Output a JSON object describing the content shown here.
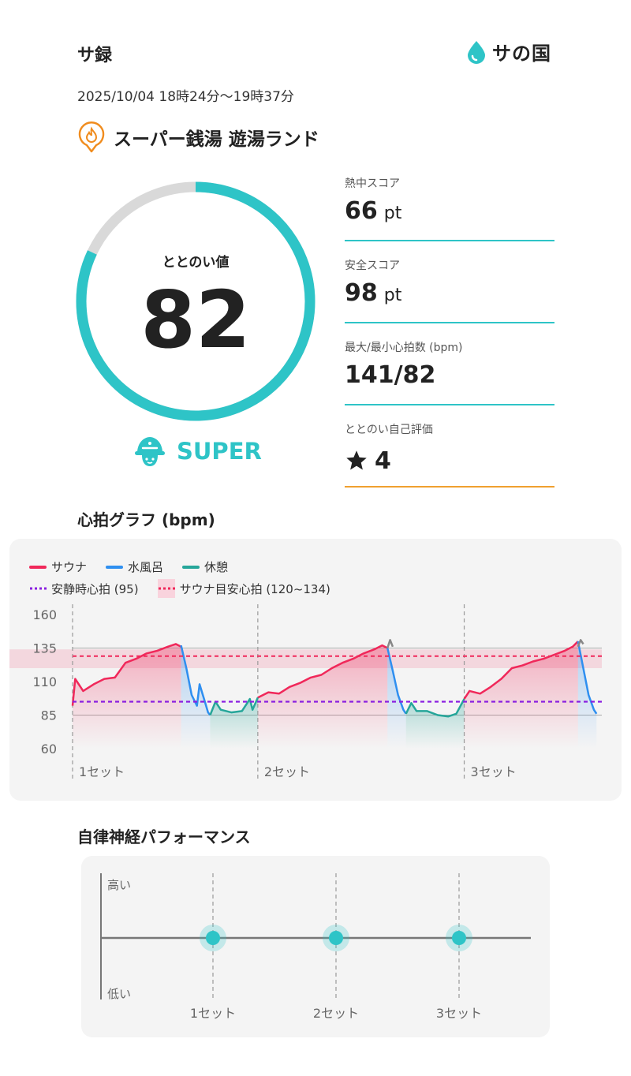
{
  "header": {
    "title": "サ録",
    "logo_text": "サの国",
    "datetime": "2025/10/04 18時24分〜19時37分",
    "facility": "スーパー銭湯 遊湯ランド"
  },
  "gauge": {
    "label": "ととのい値",
    "value": "82",
    "max": 100,
    "rank": "SUPER",
    "color": "#2ec4c7",
    "track_color": "#d9d9d9"
  },
  "stats": [
    {
      "label": "熱中スコア",
      "value": "66",
      "unit": "pt"
    },
    {
      "label": "安全スコア",
      "value": "98",
      "unit": "pt"
    },
    {
      "label": "最大/最小心拍数 (bpm)",
      "value": "141/82",
      "unit": ""
    },
    {
      "label": "ととのい自己評価",
      "value": "4",
      "unit": "",
      "icon": "star-icon"
    }
  ],
  "heart_chart": {
    "section_title": "心拍グラフ (bpm)",
    "legend": {
      "sauna": "サウナ",
      "cold": "水風呂",
      "rest": "休憩",
      "resting_hr": "安静時心拍 (95)",
      "target": "サウナ目安心拍 (120~134)"
    },
    "colors": {
      "sauna": "#f0285a",
      "cold": "#2f8ff0",
      "rest": "#26a69a",
      "resting": "#8a1fe0",
      "target": "#f0285a"
    },
    "set_labels": [
      "1セット",
      "2セット",
      "3セット"
    ]
  },
  "chart_data": {
    "type": "line",
    "title": "心拍グラフ (bpm)",
    "ylim": [
      60,
      160
    ],
    "y_ticks": [
      160,
      135,
      110,
      85,
      60
    ],
    "resting_hr": 95,
    "target_band": [
      120,
      134
    ],
    "x_range": [
      0,
      100
    ],
    "set_starts": [
      0,
      35,
      74
    ],
    "set_labels": [
      "1セット",
      "2セット",
      "3セット"
    ],
    "series": [
      {
        "name": "サウナ",
        "color": "#f0285a",
        "segments": [
          [
            [
              0,
              92
            ],
            [
              0.5,
              112
            ],
            [
              2,
              103
            ],
            [
              4,
              108
            ],
            [
              6,
              112
            ],
            [
              8,
              113
            ],
            [
              10,
              124
            ],
            [
              12,
              127
            ],
            [
              14,
              131
            ],
            [
              16,
              133
            ],
            [
              18,
              136
            ],
            [
              19.5,
              138
            ],
            [
              20.5,
              136
            ]
          ],
          [
            [
              35,
              98
            ],
            [
              37,
              102
            ],
            [
              39,
              101
            ],
            [
              41,
              106
            ],
            [
              43,
              109
            ],
            [
              45,
              113
            ],
            [
              47,
              115
            ],
            [
              49,
              120
            ],
            [
              51,
              124
            ],
            [
              53,
              127
            ],
            [
              55,
              131
            ],
            [
              57,
              134
            ],
            [
              58.5,
              137
            ],
            [
              59.5,
              135
            ]
          ],
          [
            [
              74,
              97
            ],
            [
              75,
              103
            ],
            [
              77,
              101
            ],
            [
              79,
              106
            ],
            [
              81,
              112
            ],
            [
              83,
              120
            ],
            [
              85,
              122
            ],
            [
              87,
              125
            ],
            [
              89,
              127
            ],
            [
              91,
              130
            ],
            [
              93,
              133
            ],
            [
              94.5,
              136
            ],
            [
              95.5,
              140
            ]
          ]
        ]
      },
      {
        "name": "水風呂",
        "color": "#2f8ff0",
        "segments": [
          [
            [
              20.5,
              137
            ],
            [
              21.5,
              120
            ],
            [
              22.5,
              100
            ],
            [
              23.5,
              92
            ],
            [
              24,
              108
            ],
            [
              25,
              95
            ],
            [
              25.6,
              87
            ],
            [
              26,
              85
            ]
          ],
          [
            [
              59.5,
              135
            ],
            [
              60.5,
              118
            ],
            [
              61.5,
              100
            ],
            [
              62.5,
              89
            ],
            [
              63,
              86
            ]
          ],
          [
            [
              95.5,
              140
            ],
            [
              96.5,
              120
            ],
            [
              97.5,
              100
            ],
            [
              98.5,
              89
            ],
            [
              99,
              86
            ]
          ]
        ]
      },
      {
        "name": "休憩",
        "color": "#26a69a",
        "segments": [
          [
            [
              26,
              85
            ],
            [
              27,
              95
            ],
            [
              28,
              89
            ],
            [
              30,
              87
            ],
            [
              32,
              88
            ],
            [
              33.5,
              97
            ],
            [
              34,
              89
            ],
            [
              35,
              98
            ]
          ],
          [
            [
              63,
              86
            ],
            [
              64,
              94
            ],
            [
              65,
              88
            ],
            [
              67,
              88
            ],
            [
              69,
              85
            ],
            [
              71,
              84
            ],
            [
              72.5,
              86
            ],
            [
              74,
              97
            ]
          ]
        ]
      },
      {
        "name": "",
        "color": "#888888",
        "segments": [
          [
            [
              59.5,
              135
            ],
            [
              60,
              141
            ],
            [
              60.5,
              136
            ]
          ],
          [
            [
              95.5,
              136
            ],
            [
              96,
              141
            ],
            [
              96.5,
              138
            ]
          ]
        ]
      }
    ]
  },
  "ans_chart": {
    "section_title": "自律神経パフォーマンス",
    "high_label": "高い",
    "low_label": "低い",
    "set_labels": [
      "1セット",
      "2セット",
      "3セット"
    ],
    "levels": [
      0.5,
      0.5,
      0.5
    ],
    "point_color": "#2ec4c7"
  }
}
